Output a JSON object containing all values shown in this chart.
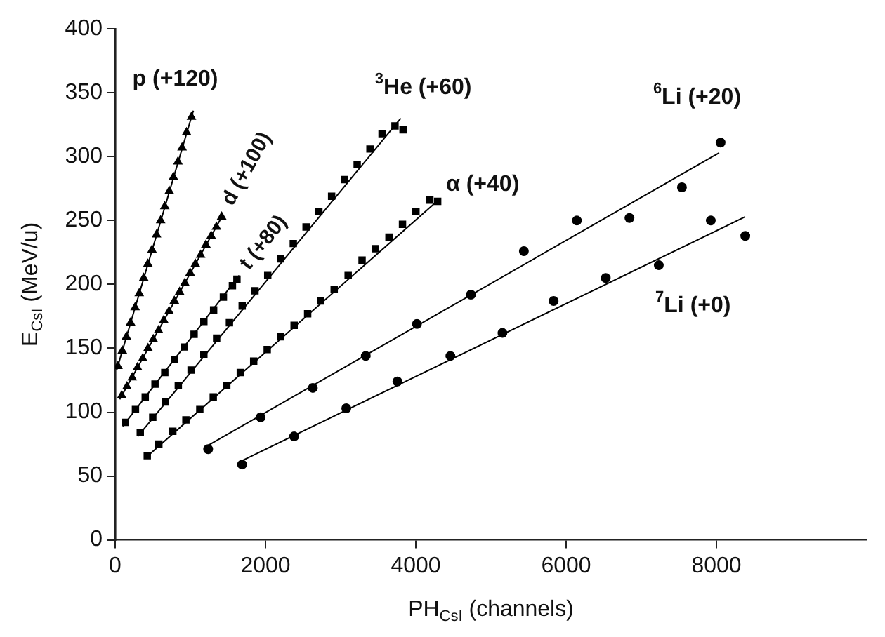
{
  "chart_data": {
    "type": "scatter",
    "xlabel": "PH$_{CsI}$ (channels)",
    "ylabel": "E$_{CsI}$ (MeV/u)",
    "xlim": [
      0,
      10000
    ],
    "xticks": [
      0,
      2000,
      4000,
      6000,
      8000
    ],
    "ylim": [
      0,
      400
    ],
    "yticks": [
      0,
      50,
      100,
      150,
      200,
      250,
      300,
      350,
      400
    ],
    "grid": false,
    "series": [
      {
        "name": "p (+120)",
        "marker": "triangle",
        "color": "#000000",
        "x": [
          37,
          95,
          150,
          205,
          265,
          320,
          380,
          435,
          490,
          550,
          605,
          660,
          720,
          775,
          835,
          890,
          950,
          1015
        ],
        "values": [
          136,
          148,
          159,
          170,
          182,
          193,
          205,
          216,
          227,
          239,
          250,
          261,
          273,
          284,
          296,
          307,
          319,
          331
        ]
      },
      {
        "name": "d (+100)",
        "marker": "triangle",
        "color": "#000000",
        "x": [
          87,
          157,
          227,
          297,
          367,
          437,
          507,
          577,
          647,
          717,
          787,
          857,
          927,
          997,
          1067,
          1137,
          1207,
          1277,
          1347,
          1417
        ],
        "values": [
          113,
          120,
          127,
          135,
          142,
          150,
          157,
          164,
          172,
          179,
          187,
          194,
          201,
          209,
          216,
          223,
          231,
          238,
          245,
          253
        ]
      },
      {
        "name": "t (+80)",
        "marker": "square",
        "color": "#000000",
        "x": [
          136,
          270,
          400,
          530,
          660,
          790,
          920,
          1050,
          1180,
          1310,
          1440,
          1560,
          1620
        ],
        "values": [
          92,
          102,
          112,
          122,
          131,
          141,
          151,
          161,
          171,
          180,
          190,
          199,
          204
        ]
      },
      {
        "name": "$^{3}$He (+60)",
        "marker": "square",
        "color": "#000000",
        "x": [
          334,
          500,
          670,
          840,
          1010,
          1180,
          1350,
          1520,
          1690,
          1860,
          2030,
          2200,
          2370,
          2540,
          2710,
          2880,
          3050,
          3220,
          3390,
          3551,
          3723,
          3830
        ],
        "values": [
          84,
          96,
          108,
          121,
          133,
          145,
          158,
          170,
          183,
          195,
          207,
          220,
          232,
          245,
          257,
          269,
          282,
          294,
          306,
          318,
          324,
          321
        ]
      },
      {
        "name": "α (+40)",
        "marker": "square",
        "color": "#000000",
        "x": [
          427,
          581,
          767,
          941,
          1126,
          1305,
          1485,
          1665,
          1843,
          2023,
          2203,
          2381,
          2561,
          2734,
          2914,
          3100,
          3285,
          3465,
          3643,
          3823,
          4002,
          4187,
          4291
        ],
        "values": [
          66,
          75,
          85,
          94,
          102,
          112,
          121,
          131,
          140,
          149,
          159,
          168,
          177,
          187,
          196,
          207,
          219,
          228,
          237,
          247,
          257,
          266,
          265
        ]
      },
      {
        "name": "$^{6}$Li (+20)",
        "marker": "circle",
        "color": "#000000",
        "x": [
          1237,
          1936,
          2630,
          3334,
          4015,
          4733,
          5438,
          6143,
          6843,
          7541,
          8055
        ],
        "values": [
          71,
          96,
          119,
          144,
          169,
          192,
          226,
          250,
          252,
          276,
          311
        ]
      },
      {
        "name": "$^{7}$Li (+0)",
        "marker": "circle",
        "color": "#000000",
        "x": [
          1689,
          2381,
          3075,
          3755,
          4460,
          5153,
          5834,
          6527,
          7233,
          7925,
          8384
        ],
        "values": [
          59,
          81,
          103,
          124,
          144,
          162,
          187,
          205,
          215,
          250,
          238
        ]
      },
      {
        "type": "line",
        "marker": "none",
        "color": "#000000",
        "x": [
          20,
          1040
        ],
        "values": [
          133,
          336
        ]
      },
      {
        "type": "line",
        "marker": "none",
        "color": "#000000",
        "x": [
          60,
          1430
        ],
        "values": [
          110,
          254
        ]
      },
      {
        "type": "line",
        "marker": "none",
        "color": "#000000",
        "x": [
          100,
          1650
        ],
        "values": [
          89,
          207
        ]
      },
      {
        "type": "line",
        "marker": "none",
        "color": "#000000",
        "x": [
          300,
          3800
        ],
        "values": [
          81,
          330
        ]
      },
      {
        "type": "line",
        "marker": "none",
        "color": "#000000",
        "x": [
          400,
          4300
        ],
        "values": [
          64,
          266
        ]
      },
      {
        "type": "line",
        "marker": "none",
        "color": "#000000",
        "x": [
          1237,
          8036
        ],
        "values": [
          74,
          303
        ]
      },
      {
        "type": "line",
        "marker": "none",
        "color": "#000000",
        "x": [
          1689,
          8384
        ],
        "values": [
          62,
          253
        ]
      }
    ]
  }
}
